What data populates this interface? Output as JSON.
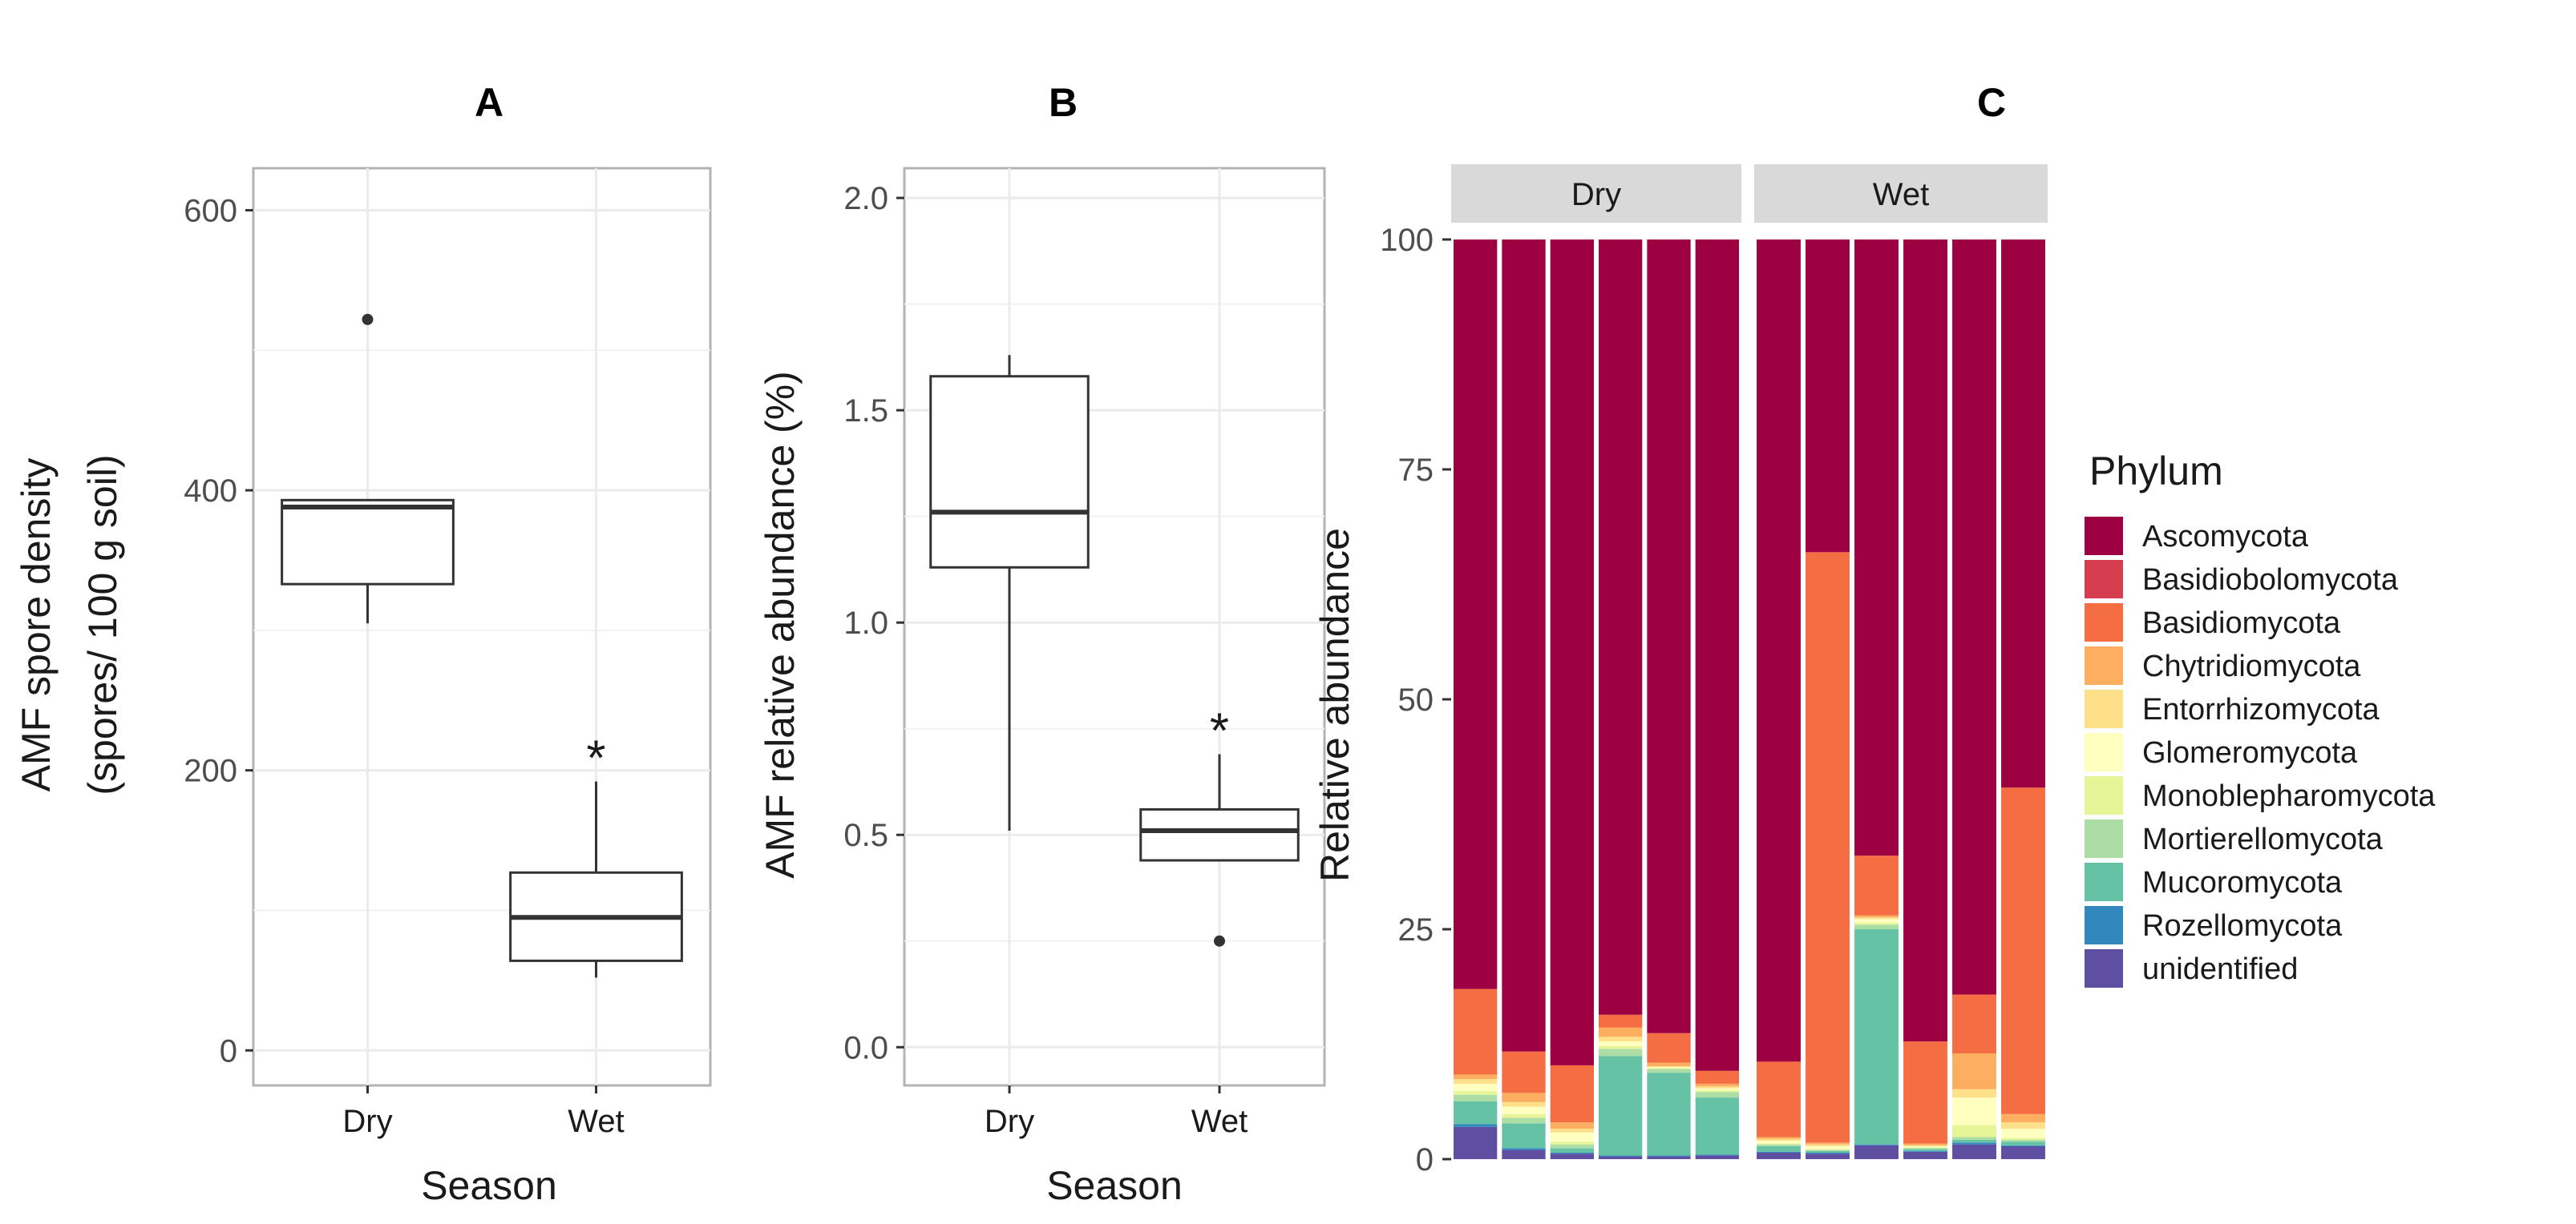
{
  "chart_data": [
    {
      "type": "box",
      "panel": "A",
      "xlabel": "Season",
      "ylabel_line1": "AMF spore density",
      "ylabel_line2": "(spores/ 100 g soil)",
      "ylim": [
        -25,
        630
      ],
      "yticks": [
        0,
        200,
        400,
        600
      ],
      "categories": [
        "Dry",
        "Wet"
      ],
      "boxes": [
        {
          "category": "Dry",
          "whisker_low": 305,
          "q1": 333,
          "median": 388,
          "q3": 393,
          "whisker_high": 393,
          "outliers": [
            522
          ],
          "annotation": ""
        },
        {
          "category": "Wet",
          "whisker_low": 52,
          "q1": 64,
          "median": 95,
          "q3": 127,
          "whisker_high": 192,
          "outliers": [],
          "annotation": "*"
        }
      ],
      "grid": true
    },
    {
      "type": "box",
      "panel": "B",
      "xlabel": "Season",
      "ylabel": "AMF relative abundance (%)",
      "ylim": [
        -0.09,
        2.07
      ],
      "yticks": [
        0.0,
        0.5,
        1.0,
        1.5,
        2.0
      ],
      "ytick_labels": [
        "0.0",
        "0.5",
        "1.0",
        "1.5",
        "2.0"
      ],
      "categories": [
        "Dry",
        "Wet"
      ],
      "boxes": [
        {
          "category": "Dry",
          "whisker_low": 0.51,
          "q1": 1.13,
          "median": 1.26,
          "q3": 1.58,
          "whisker_high": 1.63,
          "outliers": [],
          "annotation": ""
        },
        {
          "category": "Wet",
          "whisker_low": 0.44,
          "q1": 0.44,
          "median": 0.51,
          "q3": 0.56,
          "whisker_high": 0.69,
          "outliers": [
            0.25
          ],
          "annotation": "*"
        }
      ],
      "grid": true
    },
    {
      "type": "bar",
      "stacked": true,
      "panel": "C",
      "ylabel": "Relative abundance",
      "ylim": [
        -2,
        102
      ],
      "yticks": [
        0,
        25,
        50,
        75,
        100
      ],
      "facets": [
        "Dry",
        "Wet"
      ],
      "legend_title": "Phylum",
      "legend_position": "right",
      "phyla": [
        {
          "name": "Ascomycota",
          "color": "#9e0142"
        },
        {
          "name": "Basidiobolomycota",
          "color": "#d53e4f"
        },
        {
          "name": "Basidiomycota",
          "color": "#f46d43"
        },
        {
          "name": "Chytridiomycota",
          "color": "#fdae61"
        },
        {
          "name": "Entorrhizomycota",
          "color": "#fee08b"
        },
        {
          "name": "Glomeromycota",
          "color": "#ffffbf"
        },
        {
          "name": "Monoblepharomycota",
          "color": "#e6f598"
        },
        {
          "name": "Mortierellomycota",
          "color": "#abdda4"
        },
        {
          "name": "Mucoromycota",
          "color": "#66c2a5"
        },
        {
          "name": "Rozellomycota",
          "color": "#3288bd"
        },
        {
          "name": "unidentified",
          "color": "#5e4fa2"
        }
      ],
      "stack_order_bottom_to_top": [
        "unidentified",
        "Rozellomycota",
        "Mucoromycota",
        "Mortierellomycota",
        "Monoblepharomycota",
        "Glomeromycota",
        "Entorrhizomycota",
        "Chytridiomycota",
        "Basidiomycota",
        "Basidiobolomycota",
        "Ascomycota"
      ],
      "samples": [
        {
          "facet": "Dry",
          "values": {
            "unidentified": 3.5,
            "Rozellomycota": 0.3,
            "Mucoromycota": 2.5,
            "Mortierellomycota": 0.7,
            "Monoblepharomycota": 0.4,
            "Glomeromycota": 0.8,
            "Entorrhizomycota": 0.5,
            "Chytridiomycota": 0.5,
            "Basidiomycota": 9.3,
            "Basidiobolomycota": 0,
            "Ascomycota": 81.5
          }
        },
        {
          "facet": "Dry",
          "values": {
            "unidentified": 1.0,
            "Rozellomycota": 0.2,
            "Mucoromycota": 2.7,
            "Mortierellomycota": 0.6,
            "Monoblepharomycota": 0.4,
            "Glomeromycota": 0.8,
            "Entorrhizomycota": 0.5,
            "Chytridiomycota": 1.0,
            "Basidiomycota": 4.5,
            "Basidiobolomycota": 0,
            "Ascomycota": 88.3
          }
        },
        {
          "facet": "Dry",
          "values": {
            "unidentified": 0.6,
            "Rozellomycota": 0.1,
            "Mucoromycota": 0.5,
            "Mortierellomycota": 0.4,
            "Monoblepharomycota": 0.3,
            "Glomeromycota": 1.0,
            "Entorrhizomycota": 0.4,
            "Chytridiomycota": 0.7,
            "Basidiomycota": 6.2,
            "Basidiobolomycota": 0,
            "Ascomycota": 89.8
          }
        },
        {
          "facet": "Dry",
          "values": {
            "unidentified": 0.3,
            "Rozellomycota": 0.1,
            "Mucoromycota": 10.8,
            "Mortierellomycota": 0.8,
            "Monoblepharomycota": 0.3,
            "Glomeromycota": 0.5,
            "Entorrhizomycota": 0.5,
            "Chytridiomycota": 1.0,
            "Basidiomycota": 1.4,
            "Basidiobolomycota": 0,
            "Ascomycota": 84.3
          }
        },
        {
          "facet": "Dry",
          "values": {
            "unidentified": 0.3,
            "Rozellomycota": 0.1,
            "Mucoromycota": 9.0,
            "Mortierellomycota": 0.4,
            "Monoblepharomycota": 0.1,
            "Glomeromycota": 0.1,
            "Entorrhizomycota": 0.1,
            "Chytridiomycota": 0.4,
            "Basidiomycota": 3.2,
            "Basidiobolomycota": 0,
            "Ascomycota": 86.3
          }
        },
        {
          "facet": "Dry",
          "values": {
            "unidentified": 0.4,
            "Rozellomycota": 0.1,
            "Mucoromycota": 6.2,
            "Mortierellomycota": 0.6,
            "Monoblepharomycota": 0.2,
            "Glomeromycota": 0.2,
            "Entorrhizomycota": 0.2,
            "Chytridiomycota": 0.3,
            "Basidiomycota": 1.4,
            "Basidiobolomycota": 0,
            "Ascomycota": 90.4
          }
        },
        {
          "facet": "Wet",
          "values": {
            "unidentified": 0.7,
            "Rozellomycota": 0.1,
            "Mucoromycota": 0.6,
            "Mortierellomycota": 0.2,
            "Monoblepharomycota": 0.1,
            "Glomeromycota": 0.3,
            "Entorrhizomycota": 0.2,
            "Chytridiomycota": 0.2,
            "Basidiomycota": 8.2,
            "Basidiobolomycota": 0,
            "Ascomycota": 89.4
          }
        },
        {
          "facet": "Wet",
          "values": {
            "unidentified": 0.6,
            "Rozellomycota": 0.1,
            "Mucoromycota": 0.2,
            "Mortierellomycota": 0.1,
            "Monoblepharomycota": 0.1,
            "Glomeromycota": 0.3,
            "Entorrhizomycota": 0.2,
            "Chytridiomycota": 0.2,
            "Basidiomycota": 64.2,
            "Basidiobolomycota": 0,
            "Ascomycota": 34.0
          }
        },
        {
          "facet": "Wet",
          "values": {
            "unidentified": 1.5,
            "Rozellomycota": 0.1,
            "Mucoromycota": 23.4,
            "Mortierellomycota": 0.5,
            "Monoblepharomycota": 0.2,
            "Glomeromycota": 0.4,
            "Entorrhizomycota": 0.2,
            "Chytridiomycota": 0.2,
            "Basidiomycota": 6.5,
            "Basidiobolomycota": 0,
            "Ascomycota": 67.0
          }
        },
        {
          "facet": "Wet",
          "values": {
            "unidentified": 0.8,
            "Rozellomycota": 0.1,
            "Mucoromycota": 0.2,
            "Mortierellomycota": 0.1,
            "Monoblepharomycota": 0.1,
            "Glomeromycota": 0.1,
            "Entorrhizomycota": 0.1,
            "Chytridiomycota": 0.2,
            "Basidiomycota": 11.1,
            "Basidiobolomycota": 0,
            "Ascomycota": 87.2
          }
        },
        {
          "facet": "Wet",
          "values": {
            "unidentified": 1.6,
            "Rozellomycota": 0.2,
            "Mucoromycota": 0.3,
            "Mortierellomycota": 0.3,
            "Monoblepharomycota": 1.3,
            "Glomeromycota": 3.0,
            "Entorrhizomycota": 0.9,
            "Chytridiomycota": 3.9,
            "Basidiomycota": 6.4,
            "Basidiobolomycota": 0,
            "Ascomycota": 82.1
          }
        },
        {
          "facet": "Wet",
          "values": {
            "unidentified": 1.4,
            "Rozellomycota": 0.1,
            "Mucoromycota": 0.4,
            "Mortierellomycota": 0.2,
            "Monoblepharomycota": 0.2,
            "Glomeromycota": 1.0,
            "Entorrhizomycota": 0.7,
            "Chytridiomycota": 0.9,
            "Basidiomycota": 35.5,
            "Basidiobolomycota": 0,
            "Ascomycota": 59.6
          }
        }
      ]
    }
  ]
}
